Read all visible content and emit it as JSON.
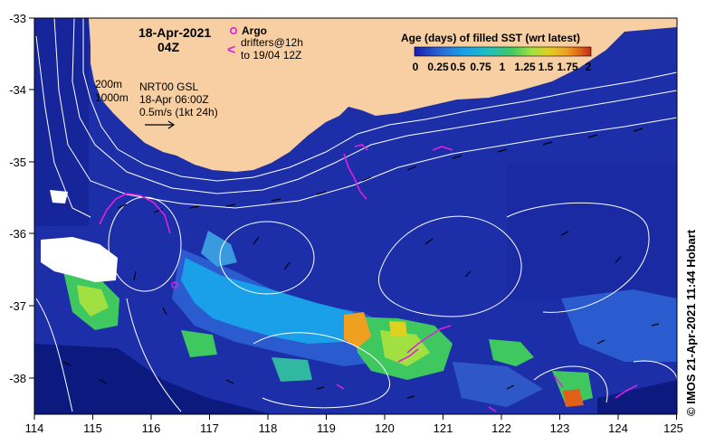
{
  "title": {
    "date": "18-Apr-2021",
    "hour": "04Z"
  },
  "legend": {
    "argo_label": "Argo",
    "drifters_line1": "drifters@12h",
    "drifters_line2": "to 19/04 12Z",
    "sst_title": "Age (days) of filled SST (wrt latest)",
    "sst_ticks": [
      "0",
      "0.25",
      "0.5",
      "0.75",
      "1",
      "1.25",
      "1.5",
      "1.75",
      "2"
    ],
    "sst_colors": [
      "#1b1bb0",
      "#2a6ad8",
      "#1aa0e8",
      "#20c0c0",
      "#40c860",
      "#a0e040",
      "#e0d020",
      "#f0a020",
      "#e06018",
      "#c02818"
    ]
  },
  "overlay": {
    "depth_200": "200m",
    "depth_1000": "1000m",
    "product": "NRT00 GSL",
    "analysis_time": "18-Apr 06:00Z",
    "scale": "0.5m/s (1kt 24h)"
  },
  "axes": {
    "lon_ticks": [
      "114",
      "115",
      "116",
      "117",
      "118",
      "119",
      "120",
      "121",
      "122",
      "123",
      "124",
      "125"
    ],
    "lat_ticks": [
      "-33",
      "-34",
      "-35",
      "-36",
      "-37",
      "-38"
    ]
  },
  "credit": "IMOS 21-Apr-2021 11:44 Hobart",
  "credit_symbol": "©",
  "colors": {
    "land": "#f7cfa3",
    "ocean": "#1d2fa8",
    "drifters": "#e020e0"
  }
}
